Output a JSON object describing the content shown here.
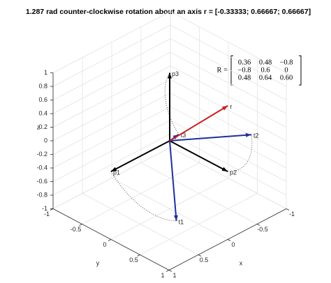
{
  "chart_data": {
    "type": "vector3d",
    "title": "1.287 rad counter-clockwise rotation about an axis r = [-0.33333; 0.66667; 0.66667]",
    "xlabel": "x",
    "ylabel": "y",
    "zlabel": "z",
    "xlim": [
      -1,
      1
    ],
    "ylim": [
      -1,
      1
    ],
    "zlim": [
      -1,
      1
    ],
    "xticks": [
      -1,
      -0.5,
      0,
      0.5,
      1
    ],
    "yticks": [
      -1,
      -0.5,
      0,
      0.5,
      1
    ],
    "zticks": [
      -1,
      -0.8,
      -0.6,
      -0.4,
      -0.2,
      0,
      0.2,
      0.4,
      0.6,
      0.8,
      1
    ],
    "grid": true,
    "angle": 1.287,
    "vectors": {
      "original": [
        {
          "name": "p1",
          "color": "#000000",
          "values": [
            1,
            0,
            0
          ]
        },
        {
          "name": "p2",
          "color": "#000000",
          "values": [
            0,
            1,
            0
          ]
        },
        {
          "name": "p3",
          "color": "#000000",
          "values": [
            0,
            0,
            1
          ]
        }
      ],
      "rotated": [
        {
          "name": "t1",
          "color": "#1f2f9e",
          "values": [
            0.36,
            0.48,
            -0.8
          ]
        },
        {
          "name": "t2",
          "color": "#1f2f9e",
          "values": [
            -0.8,
            0.6,
            0
          ]
        },
        {
          "name": "t3",
          "color": "#1f2f9e",
          "values": [
            0.48,
            0.64,
            0.6
          ]
        }
      ],
      "axis": {
        "name": "r",
        "color": "#c81e1e",
        "values": [
          -0.33333,
          0.66667,
          0.66667
        ]
      }
    },
    "annotation": {
      "label": "R =",
      "matrix": [
        [
          "0.36",
          "0.48",
          "−0.8"
        ],
        [
          "−0.8",
          "0.6",
          "0"
        ],
        [
          "0.48",
          "0.64",
          "0.60"
        ]
      ]
    }
  }
}
